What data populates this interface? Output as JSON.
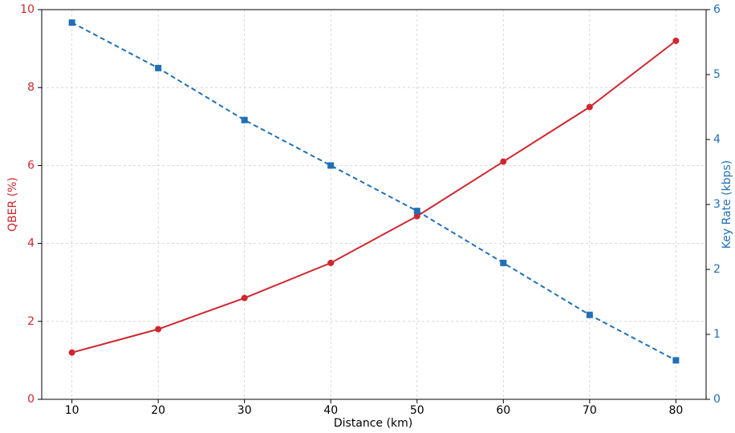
{
  "chart_data": {
    "type": "line",
    "x": [
      10,
      20,
      30,
      40,
      50,
      60,
      70,
      80
    ],
    "xlabel": "Distance (km)",
    "ylabel": "QBER (%)",
    "y2label": "Key Rate (kbps)",
    "xlim": [
      6.5,
      83.5
    ],
    "xticks": [
      10,
      20,
      30,
      40,
      50,
      60,
      70,
      80
    ],
    "ylim": [
      0,
      10
    ],
    "yticks": [
      0,
      2,
      4,
      6,
      8,
      10
    ],
    "y2lim": [
      0,
      6
    ],
    "y2ticks": [
      0,
      1,
      2,
      3,
      4,
      5,
      6
    ],
    "grid": true,
    "series": [
      {
        "color": "#d0272f",
        "marker": "circle",
        "linestyle": "solid",
        "values": [
          1.2,
          1.8,
          2.6,
          3.5,
          4.7,
          6.1,
          7.5,
          9.2
        ]
      },
      {
        "color": "#2170b5",
        "marker": "square",
        "linestyle": "dashed",
        "axis": "y2",
        "values": [
          5.8,
          5.1,
          4.3,
          3.6,
          2.9,
          2.1,
          1.3,
          0.6
        ]
      }
    ]
  }
}
